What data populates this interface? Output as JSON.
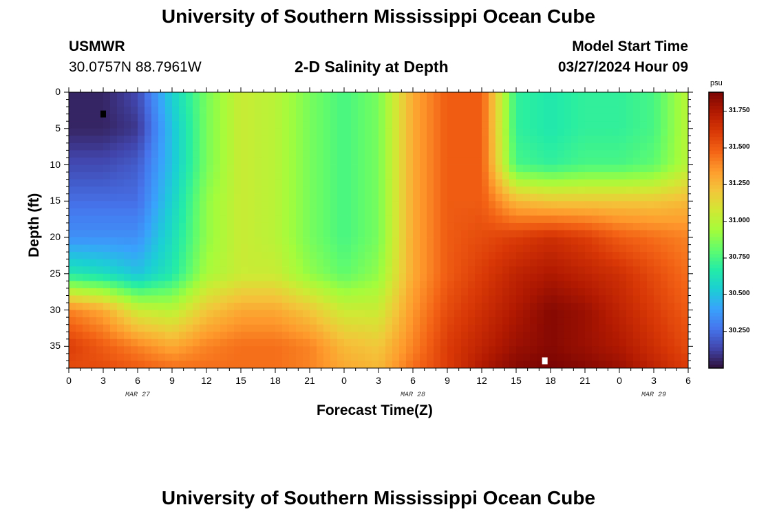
{
  "page": {
    "title": "University of Southern Mississippi Ocean Cube",
    "footer_title": "University of Southern Mississippi Ocean Cube",
    "station": "USMWR",
    "coordinates": "30.0757N  88.7961W",
    "subtitle": "2-D Salinity at Depth",
    "model_start_label": "Model Start Time",
    "model_start_value": "03/27/2024 Hour 09"
  },
  "colors": {
    "scale": [
      "#30123b",
      "#4145ab",
      "#4675ed",
      "#39a2fc",
      "#1bcfd4",
      "#24eca6",
      "#61fc6c",
      "#a4fc3b",
      "#d1e834",
      "#f3c63a",
      "#fe9b2d",
      "#f36315",
      "#d93806",
      "#b11901",
      "#7a0403"
    ]
  },
  "chart_data": {
    "type": "heatmap",
    "title": "2-D Salinity at Depth",
    "xlabel": "Forecast Time(Z)",
    "ylabel": "Depth (ft)",
    "x_tick_labels": [
      "0",
      "3",
      "6",
      "9",
      "12",
      "15",
      "18",
      "21",
      "0",
      "3",
      "6",
      "9",
      "12",
      "15",
      "18",
      "21",
      "0",
      "3",
      "6"
    ],
    "x_range_hours": [
      0,
      54
    ],
    "date_labels": [
      {
        "label": "MAR 27",
        "hour": 6
      },
      {
        "label": "MAR 28",
        "hour": 30
      },
      {
        "label": "MAR 29",
        "hour": 51
      }
    ],
    "y_ticks": [
      0,
      5,
      10,
      15,
      20,
      25,
      30,
      35
    ],
    "y_range_ft": [
      0,
      38
    ],
    "colorbar": {
      "unit": "psu",
      "min": 30.0,
      "max": 31.88,
      "ticks": [
        "30.250",
        "30.500",
        "30.750",
        "31.000",
        "31.250",
        "31.500",
        "31.750"
      ],
      "tick_values": [
        30.25,
        30.5,
        30.75,
        31.0,
        31.25,
        31.5,
        31.75
      ]
    },
    "markers": [
      {
        "type": "min",
        "hour": 3,
        "depth_ft": 3,
        "color": "#000000"
      },
      {
        "type": "max",
        "hour": 41.5,
        "depth_ft": 37,
        "color": "#ffffff"
      }
    ],
    "grid_depths_ft": [
      0,
      5,
      10,
      15,
      20,
      25,
      30,
      35,
      38
    ],
    "grid_hours": [
      0,
      3,
      6,
      9,
      12,
      15,
      18,
      21,
      24,
      27,
      30,
      33,
      36,
      39,
      42,
      45,
      48,
      51,
      54
    ],
    "salinity_psu": [
      [
        30.05,
        30.05,
        30.15,
        30.55,
        30.85,
        31.05,
        31.0,
        30.85,
        30.75,
        30.85,
        31.3,
        31.5,
        31.5,
        30.7,
        30.65,
        30.7,
        30.7,
        30.75,
        31.0
      ],
      [
        30.05,
        30.05,
        30.1,
        30.5,
        30.85,
        31.05,
        31.0,
        30.85,
        30.75,
        30.85,
        31.3,
        31.5,
        31.5,
        30.7,
        30.65,
        30.7,
        30.7,
        30.75,
        31.0
      ],
      [
        30.15,
        30.15,
        30.2,
        30.5,
        30.85,
        31.05,
        31.0,
        30.85,
        30.75,
        30.85,
        31.3,
        31.5,
        31.5,
        30.75,
        30.7,
        30.75,
        30.75,
        30.8,
        31.0
      ],
      [
        30.25,
        30.25,
        30.25,
        30.55,
        30.9,
        31.05,
        31.0,
        30.85,
        30.75,
        30.85,
        31.3,
        31.5,
        31.5,
        31.25,
        31.2,
        31.2,
        31.2,
        31.2,
        31.25
      ],
      [
        30.35,
        30.35,
        30.35,
        30.6,
        30.9,
        31.05,
        31.0,
        30.85,
        30.75,
        30.85,
        31.3,
        31.5,
        31.55,
        31.6,
        31.65,
        31.6,
        31.5,
        31.45,
        31.4
      ],
      [
        30.65,
        30.6,
        30.5,
        30.65,
        30.95,
        31.05,
        31.05,
        30.9,
        30.8,
        30.9,
        31.3,
        31.5,
        31.6,
        31.7,
        31.75,
        31.7,
        31.65,
        31.55,
        31.45
      ],
      [
        31.4,
        31.3,
        31.05,
        31.0,
        31.2,
        31.3,
        31.3,
        31.2,
        31.05,
        31.05,
        31.35,
        31.55,
        31.65,
        31.75,
        31.85,
        31.8,
        31.7,
        31.6,
        31.5
      ],
      [
        31.6,
        31.5,
        31.4,
        31.3,
        31.4,
        31.45,
        31.45,
        31.4,
        31.25,
        31.2,
        31.4,
        31.6,
        31.7,
        31.8,
        31.85,
        31.8,
        31.75,
        31.65,
        31.55
      ],
      [
        31.55,
        31.55,
        31.5,
        31.45,
        31.45,
        31.45,
        31.45,
        31.4,
        31.3,
        31.25,
        31.45,
        31.6,
        31.75,
        31.85,
        31.88,
        31.85,
        31.8,
        31.7,
        31.6
      ]
    ]
  }
}
